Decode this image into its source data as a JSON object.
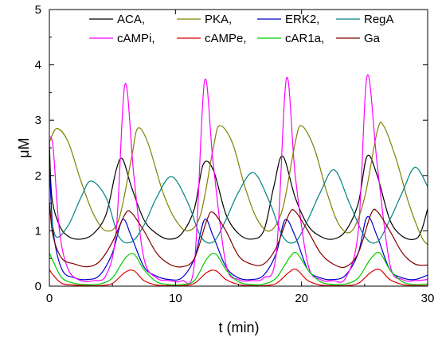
{
  "chart_data": {
    "type": "line",
    "title": "",
    "xlabel": "t (min)",
    "ylabel": "μM",
    "xlim": [
      0,
      30
    ],
    "ylim": [
      0,
      5
    ],
    "xticks": [
      0,
      10,
      20,
      30
    ],
    "yticks": [
      0,
      1,
      2,
      3,
      4,
      5
    ],
    "grid": false,
    "legend": {
      "placement": "top",
      "columns": 4
    },
    "series": [
      {
        "name": "ACA,",
        "color": "#000000",
        "x": [
          0,
          0.2,
          0.8,
          1.5,
          2.5,
          3.5,
          4.5,
          5.3,
          5.8,
          6.5,
          7.5,
          8.5,
          9.5,
          10.5,
          11.5,
          12.2,
          13,
          14,
          15,
          16,
          17,
          17.8,
          18.5,
          19.5,
          20.5,
          21.5,
          22.5,
          23.5,
          24.5,
          25.2,
          26,
          27,
          28,
          29,
          29.5,
          30
        ],
        "y": [
          2.6,
          1.6,
          1.1,
          0.9,
          0.85,
          0.95,
          1.3,
          2.1,
          2.3,
          1.8,
          1.2,
          0.95,
          0.85,
          0.95,
          1.4,
          2.2,
          2.1,
          1.3,
          0.95,
          0.85,
          1.0,
          1.8,
          2.35,
          1.6,
          1.1,
          0.9,
          0.85,
          1.0,
          1.5,
          2.35,
          2.0,
          1.2,
          0.9,
          0.85,
          1.0,
          1.4
        ]
      },
      {
        "name": "PKA,",
        "color": "#808000",
        "x": [
          0,
          0.6,
          1.5,
          2.5,
          3.5,
          4.5,
          5.5,
          6.5,
          7,
          7.8,
          9,
          10,
          11,
          12,
          13,
          13.5,
          14.5,
          15.5,
          16.5,
          17.5,
          18.5,
          19.5,
          20,
          21,
          22,
          23,
          24,
          25,
          26,
          26.5,
          27.5,
          28.5,
          29.5,
          30
        ],
        "y": [
          2.6,
          2.85,
          2.6,
          1.9,
          1.3,
          1.0,
          1.2,
          2.3,
          2.85,
          2.6,
          1.7,
          1.2,
          1.0,
          1.3,
          2.5,
          2.9,
          2.6,
          1.8,
          1.2,
          1.0,
          1.4,
          2.6,
          2.9,
          2.5,
          1.7,
          1.1,
          1.0,
          1.6,
          2.8,
          2.9,
          2.3,
          1.5,
          0.9,
          0.75
        ]
      },
      {
        "name": "ERK2,",
        "color": "#0000cc",
        "x": [
          0,
          0.3,
          1,
          2,
          3,
          4,
          5,
          5.8,
          6.5,
          7.5,
          8.5,
          9.5,
          10.5,
          11.5,
          12.3,
          13,
          14,
          15,
          16,
          17,
          18,
          18.7,
          19.5,
          20.5,
          21.5,
          22.5,
          23.5,
          24.5,
          25.2,
          26,
          27,
          28,
          29,
          30
        ],
        "y": [
          2.2,
          1.0,
          0.3,
          0.15,
          0.12,
          0.2,
          0.6,
          1.2,
          0.9,
          0.35,
          0.18,
          0.12,
          0.15,
          0.5,
          1.2,
          0.9,
          0.35,
          0.15,
          0.12,
          0.2,
          0.6,
          1.2,
          0.9,
          0.3,
          0.15,
          0.12,
          0.2,
          0.6,
          1.25,
          0.9,
          0.3,
          0.15,
          0.12,
          0.2
        ]
      },
      {
        "name": "RegA",
        "color": "#008080",
        "x": [
          0,
          0.5,
          1.5,
          2.5,
          3.3,
          4.5,
          5.5,
          6.5,
          7.5,
          8.5,
          9.7,
          11,
          12,
          13,
          14,
          15,
          16.2,
          17.5,
          18.5,
          19.5,
          20.5,
          21.5,
          22.6,
          23.8,
          25,
          26,
          27,
          28,
          29,
          30
        ],
        "y": [
          1.5,
          0.9,
          1.1,
          1.6,
          1.9,
          1.6,
          0.9,
          0.8,
          1.1,
          1.6,
          1.98,
          1.5,
          0.9,
          0.8,
          1.2,
          1.7,
          2.05,
          1.5,
          0.9,
          0.8,
          1.2,
          1.7,
          2.1,
          1.5,
          0.9,
          0.8,
          1.2,
          1.7,
          2.15,
          1.8
        ]
      },
      {
        "name": "cAMPi,",
        "color": "#ff00ff",
        "x": [
          0,
          0.3,
          0.8,
          1.5,
          2.5,
          3.5,
          4.5,
          5.3,
          6,
          6.7,
          7.5,
          8.5,
          9.5,
          10.5,
          11.5,
          12.3,
          13,
          14,
          15,
          16,
          17,
          18,
          18.8,
          19.5,
          20.5,
          21.5,
          22.5,
          23.5,
          24.5,
          25.2,
          26,
          27,
          28,
          29,
          30
        ],
        "y": [
          2.7,
          2.5,
          1.0,
          0.3,
          0.1,
          0.1,
          0.2,
          1.0,
          3.65,
          2.0,
          0.5,
          0.15,
          0.1,
          0.1,
          0.4,
          3.7,
          2.2,
          0.4,
          0.12,
          0.1,
          0.15,
          0.6,
          3.75,
          2.0,
          0.4,
          0.12,
          0.1,
          0.15,
          1.0,
          3.8,
          2.2,
          0.4,
          0.12,
          0.1,
          0.12
        ]
      },
      {
        "name": "cAMPe,",
        "color": "#dd0000",
        "x": [
          0,
          0.3,
          1,
          2,
          3,
          4,
          5,
          6,
          6.7,
          7.5,
          8.5,
          9.5,
          10.5,
          11.5,
          12.5,
          13.2,
          14,
          15,
          16,
          17,
          18,
          19,
          19.6,
          20.5,
          21.5,
          22.5,
          23.5,
          24.5,
          25.5,
          26.2,
          27,
          28,
          29,
          30
        ],
        "y": [
          0.3,
          0.2,
          0.05,
          0.02,
          0.01,
          0.01,
          0.05,
          0.25,
          0.28,
          0.1,
          0.02,
          0.01,
          0.01,
          0.05,
          0.25,
          0.28,
          0.12,
          0.03,
          0.01,
          0.01,
          0.05,
          0.25,
          0.3,
          0.1,
          0.02,
          0.01,
          0.01,
          0.05,
          0.25,
          0.3,
          0.12,
          0.03,
          0.01,
          0.01
        ]
      },
      {
        "name": "cAR1a,",
        "color": "#00cc00",
        "x": [
          0,
          0.3,
          1,
          2,
          3,
          4,
          5,
          6,
          6.7,
          7.5,
          8.5,
          9.5,
          10.5,
          11.5,
          12.5,
          13.2,
          14,
          15,
          16,
          17,
          18,
          19,
          19.6,
          20.5,
          21.5,
          22.5,
          23.5,
          24.5,
          25.5,
          26.2,
          27,
          28,
          29,
          30
        ],
        "y": [
          0.6,
          0.45,
          0.15,
          0.05,
          0.03,
          0.04,
          0.15,
          0.5,
          0.58,
          0.3,
          0.08,
          0.03,
          0.03,
          0.1,
          0.5,
          0.58,
          0.3,
          0.08,
          0.03,
          0.04,
          0.15,
          0.5,
          0.6,
          0.3,
          0.08,
          0.03,
          0.04,
          0.15,
          0.5,
          0.6,
          0.3,
          0.08,
          0.03,
          0.04
        ]
      },
      {
        "name": "Ga",
        "color": "#800000",
        "x": [
          0,
          0.3,
          1,
          2,
          3,
          4,
          5,
          6,
          6.5,
          7.5,
          8.5,
          9.5,
          10.5,
          11.5,
          12.5,
          13,
          14,
          15,
          16,
          17,
          18,
          19,
          19.5,
          20.5,
          21.5,
          22.5,
          23.5,
          24.5,
          25.5,
          26,
          27,
          28,
          29,
          30
        ],
        "y": [
          1.5,
          0.9,
          0.5,
          0.4,
          0.35,
          0.45,
          0.8,
          1.3,
          1.33,
          1.0,
          0.6,
          0.4,
          0.35,
          0.5,
          1.2,
          1.33,
          1.0,
          0.55,
          0.4,
          0.4,
          0.7,
          1.3,
          1.35,
          1.0,
          0.6,
          0.4,
          0.35,
          0.6,
          1.3,
          1.35,
          1.0,
          0.6,
          0.4,
          0.38
        ]
      }
    ]
  }
}
